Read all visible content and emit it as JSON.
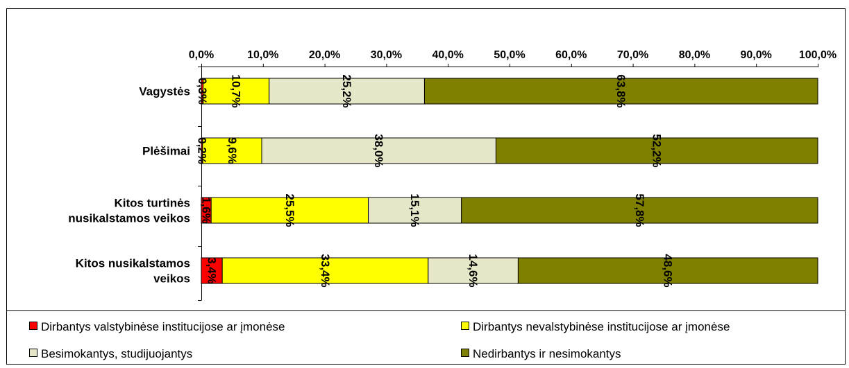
{
  "chart_data": {
    "type": "bar",
    "orientation": "horizontal",
    "stacked": true,
    "categories": [
      [
        "Vagystės"
      ],
      [
        "Plėšimai"
      ],
      [
        "Kitos turtinės",
        "nusikalstamos veikos"
      ],
      [
        "Kitos nusikalstamos",
        "veikos"
      ]
    ],
    "xlim": [
      0,
      100
    ],
    "x_ticks": [
      "0,0%",
      "10,0%",
      "20,0%",
      "30,0%",
      "40,0%",
      "50,0%",
      "60,0%",
      "70,0%",
      "80,0%",
      "90,0%",
      "100,0%"
    ],
    "grid": false,
    "legend_position": "bottom",
    "series": [
      {
        "name": "Dirbantys valstybinėse institucijose ar įmonėse",
        "color": "#ff0000",
        "values": [
          0.3,
          0.2,
          1.6,
          3.4
        ],
        "labels": [
          "0,3%",
          "0,2%",
          "1,6%",
          "3,4%"
        ]
      },
      {
        "name": "Dirbantys nevalstybinėse institucijose ar įmonėse",
        "color": "#ffff00",
        "values": [
          10.7,
          9.6,
          25.5,
          33.4
        ],
        "labels": [
          "10,7%",
          "9,6%",
          "25,5%",
          "33,4%"
        ]
      },
      {
        "name": "Besimokantys, studijuojantys",
        "color": "#e6e6c8",
        "values": [
          25.2,
          38.0,
          15.1,
          14.6
        ],
        "labels": [
          "25,2%",
          "38,0%",
          "15,1%",
          "14,6%"
        ]
      },
      {
        "name": "Nedirbantys ir nesimokantys",
        "color": "#7f7f00",
        "values": [
          63.8,
          52.2,
          57.8,
          48.6
        ],
        "labels": [
          "63,8%",
          "52,2%",
          "57,8%",
          "48,6%"
        ]
      }
    ]
  }
}
